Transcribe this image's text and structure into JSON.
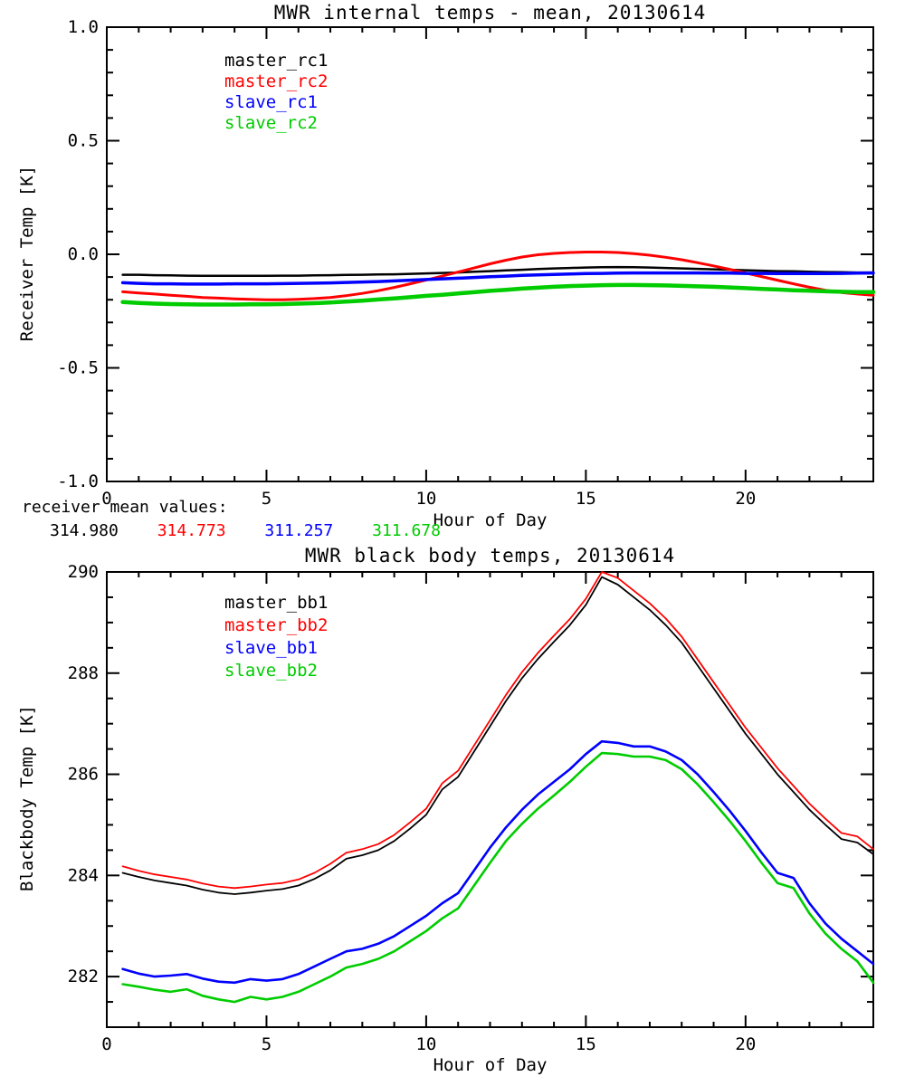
{
  "figure": {
    "background": "#ffffff",
    "text_color": "#000000"
  },
  "mean_values": {
    "label": "receiver mean values:",
    "values": [
      {
        "text": "314.980",
        "color": "#000000"
      },
      {
        "text": "314.773",
        "color": "#ff0000"
      },
      {
        "text": "311.257",
        "color": "#0000ff"
      },
      {
        "text": "311.678",
        "color": "#00cc00"
      }
    ]
  },
  "chart_data": [
    {
      "type": "line",
      "title": "MWR internal temps - mean, 20130614",
      "xlabel": "Hour of Day",
      "ylabel": "Receiver Temp [K]",
      "xlim": [
        0,
        24
      ],
      "ylim": [
        -1.0,
        1.0
      ],
      "grid": false,
      "legend_position": "upper-left-inside",
      "xticks": {
        "values": [
          0,
          5,
          10,
          15,
          20
        ],
        "labels": [
          "0",
          "5",
          "10",
          "15",
          "20"
        ],
        "minor_step": 1
      },
      "yticks": {
        "values": [
          1.0,
          0.5,
          0.0,
          -0.5,
          -1.0
        ],
        "labels": [
          "1.0",
          "0.5",
          "0.0",
          "-0.5",
          "-1.0"
        ],
        "minor_step": 0.1
      },
      "x": [
        0.5,
        1,
        1.5,
        2,
        2.5,
        3,
        3.5,
        4,
        4.5,
        5,
        5.5,
        6,
        6.5,
        7,
        7.5,
        8,
        8.5,
        9,
        9.5,
        10,
        10.5,
        11,
        11.5,
        12,
        12.5,
        13,
        13.5,
        14,
        14.5,
        15,
        15.5,
        16,
        16.5,
        17,
        17.5,
        18,
        18.5,
        19,
        19.5,
        20,
        20.5,
        21,
        21.5,
        22,
        22.5,
        23,
        23.5,
        24
      ],
      "series": [
        {
          "name": "master_rc1",
          "color": "#000000",
          "width": 2.5,
          "y": [
            -0.09,
            -0.09,
            -0.092,
            -0.093,
            -0.094,
            -0.095,
            -0.095,
            -0.095,
            -0.095,
            -0.095,
            -0.094,
            -0.094,
            -0.093,
            -0.092,
            -0.091,
            -0.09,
            -0.089,
            -0.088,
            -0.086,
            -0.084,
            -0.082,
            -0.08,
            -0.077,
            -0.074,
            -0.071,
            -0.068,
            -0.065,
            -0.062,
            -0.06,
            -0.058,
            -0.057,
            -0.056,
            -0.057,
            -0.058,
            -0.06,
            -0.062,
            -0.064,
            -0.066,
            -0.068,
            -0.07,
            -0.072,
            -0.074,
            -0.075,
            -0.077,
            -0.078,
            -0.079,
            -0.08,
            -0.08
          ]
        },
        {
          "name": "master_rc2",
          "color": "#ff0000",
          "width": 3,
          "y": [
            -0.165,
            -0.17,
            -0.175,
            -0.18,
            -0.185,
            -0.19,
            -0.193,
            -0.196,
            -0.198,
            -0.2,
            -0.2,
            -0.198,
            -0.195,
            -0.19,
            -0.182,
            -0.172,
            -0.16,
            -0.146,
            -0.13,
            -0.113,
            -0.096,
            -0.078,
            -0.06,
            -0.042,
            -0.026,
            -0.012,
            -0.002,
            0.004,
            0.008,
            0.01,
            0.01,
            0.008,
            0.003,
            -0.004,
            -0.013,
            -0.024,
            -0.037,
            -0.051,
            -0.066,
            -0.082,
            -0.098,
            -0.114,
            -0.13,
            -0.145,
            -0.158,
            -0.168,
            -0.175,
            -0.18
          ]
        },
        {
          "name": "slave_rc1",
          "color": "#0000ff",
          "width": 3.5,
          "y": [
            -0.125,
            -0.128,
            -0.13,
            -0.13,
            -0.131,
            -0.131,
            -0.131,
            -0.13,
            -0.13,
            -0.13,
            -0.129,
            -0.128,
            -0.127,
            -0.126,
            -0.124,
            -0.122,
            -0.12,
            -0.117,
            -0.114,
            -0.111,
            -0.108,
            -0.105,
            -0.102,
            -0.099,
            -0.096,
            -0.093,
            -0.091,
            -0.089,
            -0.087,
            -0.085,
            -0.084,
            -0.083,
            -0.082,
            -0.082,
            -0.082,
            -0.082,
            -0.082,
            -0.083,
            -0.083,
            -0.084,
            -0.084,
            -0.085,
            -0.085,
            -0.085,
            -0.085,
            -0.084,
            -0.083,
            -0.082
          ]
        },
        {
          "name": "slave_rc2",
          "color": "#00cc00",
          "width": 4.5,
          "y": [
            -0.21,
            -0.214,
            -0.217,
            -0.219,
            -0.22,
            -0.221,
            -0.221,
            -0.221,
            -0.22,
            -0.22,
            -0.219,
            -0.217,
            -0.215,
            -0.212,
            -0.208,
            -0.204,
            -0.199,
            -0.194,
            -0.189,
            -0.183,
            -0.178,
            -0.172,
            -0.167,
            -0.161,
            -0.156,
            -0.151,
            -0.147,
            -0.143,
            -0.14,
            -0.138,
            -0.136,
            -0.135,
            -0.135,
            -0.136,
            -0.137,
            -0.139,
            -0.141,
            -0.143,
            -0.146,
            -0.149,
            -0.152,
            -0.155,
            -0.158,
            -0.16,
            -0.163,
            -0.165,
            -0.166,
            -0.166
          ]
        }
      ]
    },
    {
      "type": "line",
      "title": "MWR black body temps, 20130614",
      "xlabel": "Hour of Day",
      "ylabel": "Blackbody Temp [K]",
      "xlim": [
        0,
        24
      ],
      "ylim": [
        281,
        290
      ],
      "grid": false,
      "legend_position": "upper-left-inside",
      "xticks": {
        "values": [
          0,
          5,
          10,
          15,
          20
        ],
        "labels": [
          "0",
          "5",
          "10",
          "15",
          "20"
        ],
        "minor_step": 1
      },
      "yticks": {
        "values": [
          290,
          288,
          286,
          284,
          282
        ],
        "labels": [
          "290",
          "288",
          "286",
          "284",
          "282"
        ],
        "minor_step": 0.5
      },
      "x": [
        0.5,
        1,
        1.5,
        2,
        2.5,
        3,
        3.5,
        4,
        4.5,
        5,
        5.5,
        6,
        6.5,
        7,
        7.5,
        8,
        8.5,
        9,
        9.5,
        10,
        10.5,
        11,
        11.5,
        12,
        12.5,
        13,
        13.5,
        14,
        14.5,
        15,
        15.5,
        16,
        16.5,
        17,
        17.5,
        18,
        18.5,
        19,
        19.5,
        20,
        20.5,
        21,
        21.5,
        22,
        22.5,
        23,
        23.5,
        24
      ],
      "series": [
        {
          "name": "master_bb1",
          "color": "#000000",
          "width": 1.8,
          "y": [
            284.05,
            283.97,
            283.9,
            283.85,
            283.8,
            283.72,
            283.66,
            283.63,
            283.66,
            283.7,
            283.73,
            283.8,
            283.93,
            284.1,
            284.33,
            284.4,
            284.5,
            284.68,
            284.93,
            285.2,
            285.7,
            285.95,
            286.45,
            286.95,
            287.45,
            287.9,
            288.28,
            288.62,
            288.95,
            289.35,
            289.9,
            289.75,
            289.5,
            289.25,
            288.95,
            288.6,
            288.15,
            287.7,
            287.25,
            286.8,
            286.4,
            286.0,
            285.65,
            285.3,
            285.0,
            284.72,
            284.65,
            284.42
          ]
        },
        {
          "name": "master_bb2",
          "color": "#ff0000",
          "width": 1.8,
          "y": [
            284.18,
            284.09,
            284.02,
            283.97,
            283.92,
            283.84,
            283.78,
            283.75,
            283.78,
            283.82,
            283.85,
            283.92,
            284.05,
            284.23,
            284.45,
            284.52,
            284.62,
            284.8,
            285.05,
            285.32,
            285.82,
            286.07,
            286.57,
            287.07,
            287.57,
            288.02,
            288.4,
            288.74,
            289.07,
            289.47,
            290.0,
            289.88,
            289.63,
            289.38,
            289.08,
            288.72,
            288.27,
            287.82,
            287.37,
            286.92,
            286.52,
            286.12,
            285.77,
            285.42,
            285.12,
            284.84,
            284.77,
            284.52
          ]
        },
        {
          "name": "slave_bb1",
          "color": "#0000ff",
          "width": 2.6,
          "y": [
            282.15,
            282.06,
            282.0,
            282.02,
            282.05,
            281.96,
            281.9,
            281.88,
            281.95,
            281.92,
            281.95,
            282.05,
            282.2,
            282.35,
            282.5,
            282.55,
            282.65,
            282.8,
            283.0,
            283.2,
            283.45,
            283.65,
            284.1,
            284.55,
            284.95,
            285.3,
            285.6,
            285.85,
            286.1,
            286.4,
            286.65,
            286.62,
            286.55,
            286.55,
            286.45,
            286.28,
            286.0,
            285.65,
            285.28,
            284.88,
            284.45,
            284.05,
            283.95,
            283.45,
            283.05,
            282.75,
            282.5,
            282.25
          ]
        },
        {
          "name": "slave_bb2",
          "color": "#00cc00",
          "width": 2.6,
          "y": [
            281.85,
            281.8,
            281.74,
            281.7,
            281.75,
            281.62,
            281.55,
            281.5,
            281.6,
            281.55,
            281.6,
            281.7,
            281.85,
            282.0,
            282.18,
            282.25,
            282.35,
            282.5,
            282.7,
            282.9,
            283.15,
            283.35,
            283.8,
            284.25,
            284.68,
            285.02,
            285.32,
            285.58,
            285.85,
            286.15,
            286.42,
            286.4,
            286.35,
            286.35,
            286.28,
            286.1,
            285.8,
            285.45,
            285.08,
            284.68,
            284.25,
            283.85,
            283.75,
            283.25,
            282.85,
            282.55,
            282.3,
            281.88
          ]
        }
      ]
    }
  ]
}
